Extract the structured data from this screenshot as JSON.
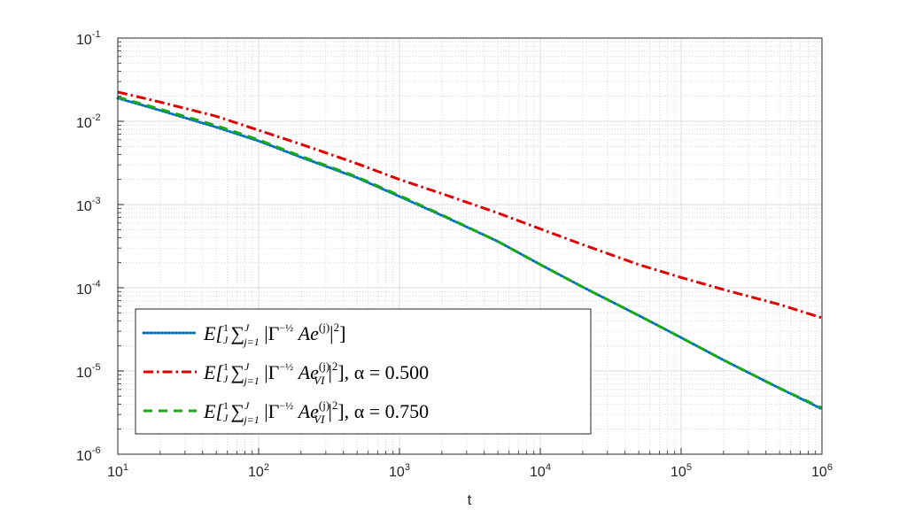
{
  "chart_data": {
    "type": "line",
    "xscale": "log",
    "yscale": "log",
    "xlim": [
      10,
      1000000
    ],
    "ylim": [
      1e-06,
      0.1
    ],
    "xlabel": "t",
    "ylabel": "",
    "grid": true,
    "minor_grid": true,
    "legend_position": "bottom-left",
    "x_ticks": [
      {
        "value": 10,
        "base": "10",
        "exp": "1"
      },
      {
        "value": 100,
        "base": "10",
        "exp": "2"
      },
      {
        "value": 1000,
        "base": "10",
        "exp": "3"
      },
      {
        "value": 10000,
        "base": "10",
        "exp": "4"
      },
      {
        "value": 100000,
        "base": "10",
        "exp": "5"
      },
      {
        "value": 1000000,
        "base": "10",
        "exp": "6"
      }
    ],
    "y_ticks": [
      {
        "value": 1e-06,
        "base": "10",
        "exp": "-6"
      },
      {
        "value": 1e-05,
        "base": "10",
        "exp": "-5"
      },
      {
        "value": 0.0001,
        "base": "10",
        "exp": "-4"
      },
      {
        "value": 0.001,
        "base": "10",
        "exp": "-3"
      },
      {
        "value": 0.01,
        "base": "10",
        "exp": "-2"
      },
      {
        "value": 0.1,
        "base": "10",
        "exp": "-1"
      }
    ],
    "series": [
      {
        "name": "E[1/J Σ_{j=1}^J |Γ^{-1/2} A e^{(j)}|^2]",
        "legend_parts": {
          "pre": "E[",
          "frac_n": "1",
          "frac_d": "J",
          "sum": "∑",
          "sum_sup": "J",
          "sum_sub": "j=1",
          "body1": " |Γ",
          "gamma_exp": "−½",
          "body2": " Ae",
          "e_sup": "(j)",
          "e_sub": "",
          "post": "|",
          "sq": "2",
          "close": "]",
          "alpha": ""
        },
        "color": "#0072BD",
        "dash": "dotted",
        "x": [
          10,
          20,
          50,
          100,
          200,
          500,
          1000,
          2000,
          5000,
          10000,
          20000,
          50000,
          100000,
          200000,
          500000,
          1000000
        ],
        "y": [
          0.019,
          0.0135,
          0.0085,
          0.0058,
          0.0037,
          0.0021,
          0.00125,
          0.00074,
          0.00036,
          0.00019,
          0.000102,
          4.65e-05,
          2.52e-05,
          1.35e-05,
          6.2e-06,
          3.5e-06
        ]
      },
      {
        "name": "E[1/J Σ_{j=1}^J |Γ^{-1/2} A e_{VI}^{(j)}|^2], α = 0.500",
        "legend_parts": {
          "pre": "E[",
          "frac_n": "1",
          "frac_d": "J",
          "sum": "∑",
          "sum_sup": "J",
          "sum_sub": "j=1",
          "body1": " |Γ",
          "gamma_exp": "−½",
          "body2": " Ae",
          "e_sup": "(j)",
          "e_sub": "VI",
          "post": "|",
          "sq": "2",
          "close": "],",
          "alpha": "α = 0.500"
        },
        "color": "#E00000",
        "dash": "dashdot",
        "x": [
          10,
          20,
          50,
          100,
          200,
          500,
          1000,
          2000,
          5000,
          10000,
          20000,
          50000,
          100000,
          200000,
          500000,
          1000000
        ],
        "y": [
          0.0225,
          0.017,
          0.0115,
          0.0078,
          0.0053,
          0.0031,
          0.002,
          0.00135,
          0.00079,
          0.00051,
          0.00033,
          0.00019,
          0.000133,
          9.5e-05,
          6.3e-05,
          4.35e-05
        ]
      },
      {
        "name": "E[1/J Σ_{j=1}^J |Γ^{-1/2} A e_{VI}^{(j)}|^2], α = 0.750",
        "legend_parts": {
          "pre": "E[",
          "frac_n": "1",
          "frac_d": "J",
          "sum": "∑",
          "sum_sup": "J",
          "sum_sub": "j=1",
          "body1": " |Γ",
          "gamma_exp": "−½",
          "body2": " Ae",
          "e_sup": "(j)",
          "e_sub": "VI",
          "post": "|",
          "sq": "2",
          "close": "],",
          "alpha": "α = 0.750"
        },
        "color": "#18A818",
        "dash": "dashed",
        "x": [
          10,
          20,
          50,
          100,
          200,
          500,
          1000,
          2000,
          5000,
          10000,
          20000,
          50000,
          100000,
          200000,
          500000,
          1000000
        ],
        "y": [
          0.0195,
          0.014,
          0.0089,
          0.006,
          0.0038,
          0.00215,
          0.00128,
          0.00075,
          0.00036,
          0.00019,
          0.000102,
          4.65e-05,
          2.52e-05,
          1.35e-05,
          6.2e-06,
          3.6e-06
        ]
      }
    ]
  }
}
